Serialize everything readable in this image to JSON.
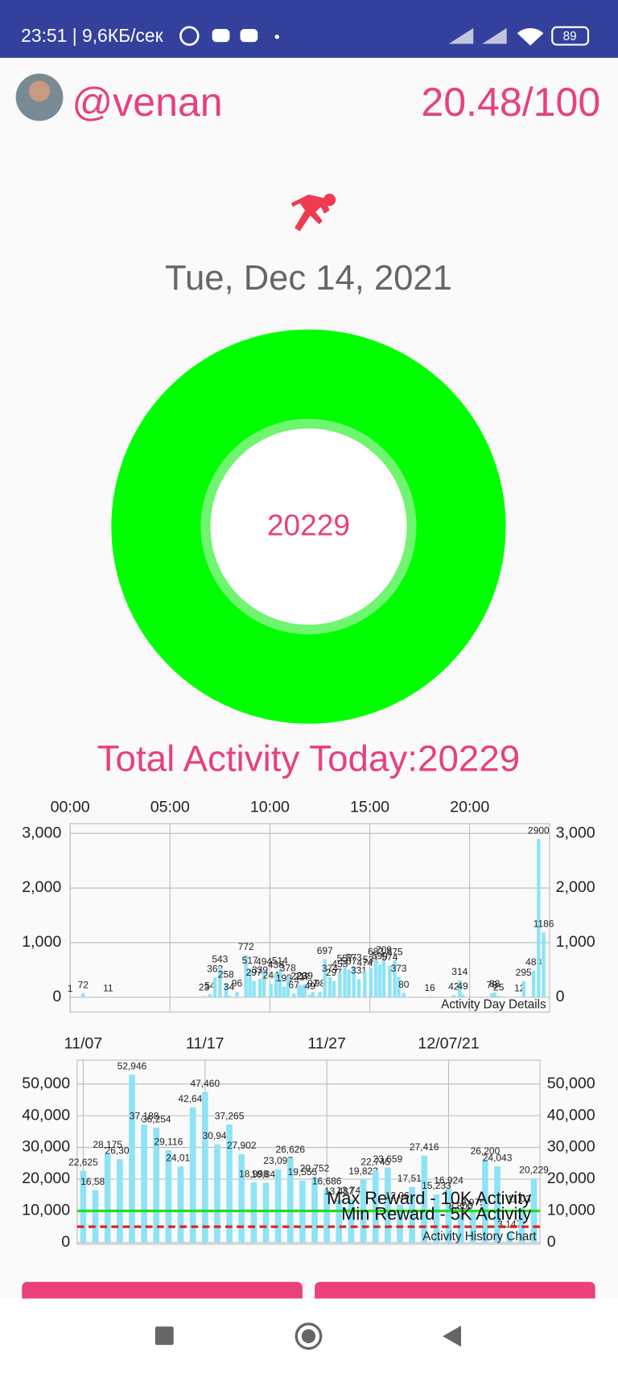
{
  "status_bar": {
    "time": "23:51 | 9,6КБ/сек",
    "battery": "89"
  },
  "header": {
    "username": "@venan",
    "score": "20.48/100"
  },
  "date": "Tue, Dec 14, 2021",
  "ring_value": "20229",
  "total_activity": "Total Activity Today:20229",
  "chart_data": [
    {
      "type": "bar",
      "annotation": "Activity Day Details",
      "color": "#8ee3f5",
      "grid": true,
      "x": [
        0,
        0.65,
        1.9,
        6.7,
        7.0,
        7.25,
        7.5,
        7.8,
        7.95,
        8.35,
        8.8,
        9.0,
        9.2,
        9.5,
        9.7,
        10.05,
        10.3,
        10.5,
        10.7,
        10.9,
        11.2,
        11.45,
        11.6,
        11.75,
        12.0,
        12.15,
        12.5,
        12.75,
        13.0,
        13.2,
        13.5,
        13.75,
        13.95,
        14.2,
        14.45,
        14.75,
        15.05,
        15.3,
        15.5,
        15.7,
        16.0,
        16.25,
        16.45,
        16.7,
        18.0,
        19.2,
        19.5,
        19.65,
        21.1,
        21.25,
        21.45,
        22.5,
        22.7,
        23.2,
        23.45,
        23.7
      ],
      "values": [
        1,
        72,
        11,
        23,
        54,
        362,
        543,
        258,
        34,
        96,
        772,
        517,
        297,
        339,
        494,
        244,
        438,
        514,
        198,
        378,
        67,
        229,
        217,
        239,
        49,
        97,
        98,
        697,
        374,
        297,
        453,
        557,
        507,
        573,
        331,
        474,
        531,
        683,
        599,
        709,
        574,
        675,
        373,
        80,
        16,
        42,
        314,
        49,
        70,
        88,
        25,
        12,
        295,
        488,
        2900,
        1186
      ],
      "xlim": [
        0,
        24
      ],
      "xticks": [
        {
          "value": 0,
          "label": "00:00"
        },
        {
          "value": 5,
          "label": "05:00"
        },
        {
          "value": 10,
          "label": "10:00"
        },
        {
          "value": 15,
          "label": "15:00"
        },
        {
          "value": 20,
          "label": "20:00"
        }
      ],
      "ylim": [
        -270,
        3180
      ],
      "yticks": [
        0,
        {
          "value": 1000,
          "label": "1,000"
        },
        {
          "value": 2000,
          "label": "2,000"
        },
        {
          "value": 3000,
          "label": "3,000"
        }
      ]
    },
    {
      "type": "bar",
      "annotation": "Activity History Chart",
      "color": "#8ee3f5",
      "grid": true,
      "categories": [
        "11/07",
        null,
        null,
        null,
        null,
        null,
        null,
        null,
        null,
        null,
        "11/17",
        null,
        null,
        null,
        null,
        null,
        null,
        null,
        null,
        null,
        "11/27",
        null,
        null,
        null,
        null,
        null,
        null,
        null,
        null,
        null,
        "12/07/21",
        null,
        null,
        null,
        null,
        null,
        null,
        null
      ],
      "values": [
        22625,
        16588,
        28175,
        26306,
        52946,
        37188,
        36254,
        29116,
        24010,
        42649,
        47460,
        30948,
        37265,
        27902,
        18998,
        18840,
        23097,
        26626,
        19555,
        20752,
        16686,
        13487,
        13745,
        19823,
        22745,
        23659,
        12068,
        17514,
        27416,
        15233,
        16924,
        8800,
        9975,
        26200,
        24043,
        3147,
        11034,
        20229
      ],
      "value_labels": [
        "22,625",
        "16,588",
        "28,175",
        "26,306",
        "52,946",
        "37,188",
        "36,254",
        "29,116",
        "24,010",
        "42,649",
        "47,460",
        "30,948",
        "37,265",
        "27,902",
        "18,998",
        "18,840",
        "23,097",
        "26,626",
        "19,555",
        "20,752",
        "16,686",
        "13,487",
        "13,745",
        "19,823",
        "22,745",
        "23,659",
        "12,068",
        "17,514",
        "27,416",
        "15,233",
        "16,924",
        "8,800",
        "9,975",
        "26,200",
        "24,043",
        "3,147",
        "11,034",
        "20,229"
      ],
      "ylim": [
        -500,
        57500
      ],
      "yticks": [
        0,
        {
          "value": 10000,
          "label": "10,000"
        },
        {
          "value": 20000,
          "label": "20,000"
        },
        {
          "value": 30000,
          "label": "30,000"
        },
        {
          "value": 40000,
          "label": "40,000"
        },
        {
          "value": 50000,
          "label": "50,000"
        }
      ],
      "reference_lines": [
        {
          "value": 10000,
          "label": "Max Reward - 10K Activity",
          "color": "#22dd22"
        },
        {
          "value": 5000,
          "label": "Min Reward - 5K Activity",
          "color": "#dd2222"
        }
      ]
    }
  ]
}
